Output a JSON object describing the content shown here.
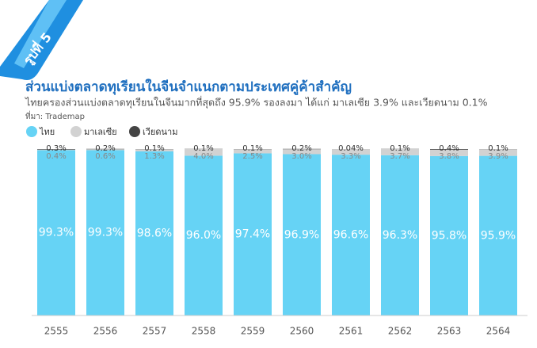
{
  "badge": "รูปที่ 5",
  "chart_data": {
    "type": "stacked_bar",
    "title": "ส่วนแบ่งตลาดทุเรียนในจีนจำแนกตามประเทศคู่ค้าสำคัญ",
    "subtitle": "ไทยครองส่วนแบ่งตลาดทุเรียนในจีนมากที่สุดถึง 95.9% รองลงมา ได้แก่ มาเลเซีย 3.9% และเวียดนาม 0.1%",
    "source": "ที่มา: Trademap",
    "categories": [
      "2555",
      "2556",
      "2557",
      "2558",
      "2559",
      "2560",
      "2561",
      "2562",
      "2563",
      "2564"
    ],
    "ylim": [
      0,
      100
    ],
    "series": [
      {
        "name": "ไทย",
        "color": "#66d3f5",
        "values": [
          99.3,
          99.3,
          98.6,
          96,
          97.4,
          96.9,
          96.6,
          96.3,
          95.8,
          95.9
        ],
        "value_labels": [
          "99.3%",
          "99.3%",
          "98.6%",
          "96.0%",
          "97.4%",
          "96.9%",
          "96.6%",
          "96.3%",
          "95.8%",
          "95.9%"
        ]
      },
      {
        "name": "มาเลเซีย",
        "color": "#d2d2d2",
        "values": [
          0.4,
          0.6,
          1.3,
          4,
          2.5,
          3,
          3.3,
          3.7,
          3.8,
          3.9
        ],
        "value_labels": [
          "0.4%",
          "0.6%",
          "1.3%",
          "4.0%",
          "2.5%",
          "3.0%",
          "3.3%",
          "3.7%",
          "3.8%",
          "3.9%"
        ]
      },
      {
        "name": "เวียดนาม",
        "color": "#444444",
        "values": [
          0.3,
          0.2,
          0.1,
          0.1,
          0.1,
          0.2,
          0.04,
          0.1,
          0.4,
          0.1
        ],
        "value_labels": [
          "0.3%",
          "0.2%",
          "0.1%",
          "0.1%",
          "0.1%",
          "0.2%",
          "0.04%",
          "0.1%",
          "0.4%",
          "0.1%"
        ]
      }
    ]
  }
}
